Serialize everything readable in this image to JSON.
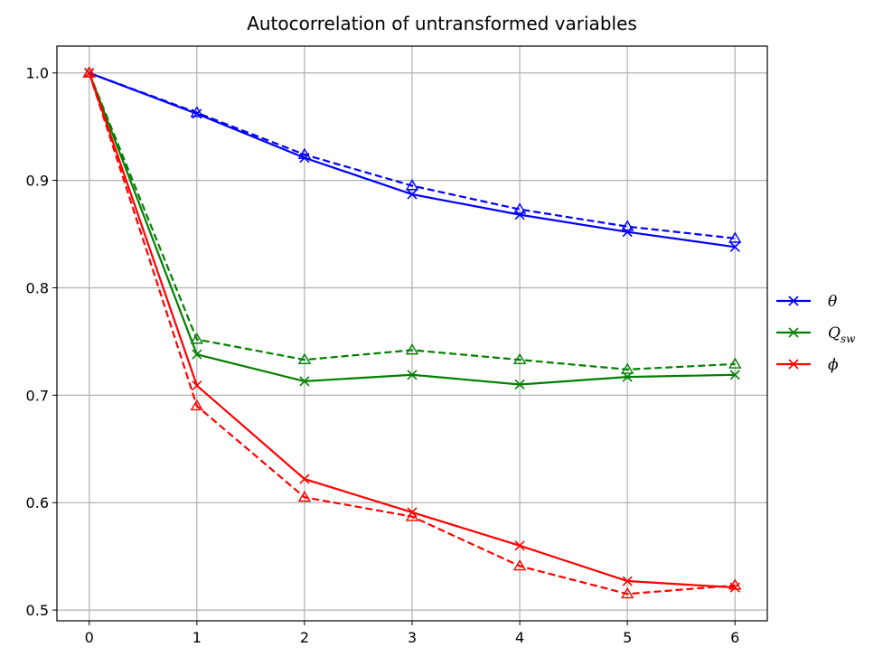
{
  "chart_data": {
    "type": "line",
    "title": "Autocorrelation of untransformed variables",
    "xlabel": "",
    "ylabel": "",
    "x": [
      0,
      1,
      2,
      3,
      4,
      5,
      6
    ],
    "xticks": [
      "0",
      "1",
      "2",
      "3",
      "4",
      "5",
      "6"
    ],
    "yticks": [
      "0.5",
      "0.6",
      "0.7",
      "0.8",
      "0.9",
      "1.0"
    ],
    "xlim": [
      -0.3,
      6.3
    ],
    "ylim": [
      0.49,
      1.025
    ],
    "grid": true,
    "legend_position": "center-right, outside plot",
    "series": [
      {
        "name": "θ",
        "color": "#0000ff",
        "linestyle": "solid",
        "marker": "x",
        "values": [
          1.0,
          0.962,
          0.921,
          0.887,
          0.868,
          0.852,
          0.838
        ]
      },
      {
        "name": "",
        "color": "#0000ff",
        "linestyle": "dashed",
        "marker": "triangle",
        "values": [
          1.0,
          0.963,
          0.924,
          0.895,
          0.873,
          0.857,
          0.846
        ]
      },
      {
        "name": "Q_sw",
        "color": "#008000",
        "linestyle": "solid",
        "marker": "x",
        "values": [
          1.0,
          0.738,
          0.713,
          0.719,
          0.71,
          0.717,
          0.719
        ]
      },
      {
        "name": "",
        "color": "#008000",
        "linestyle": "dashed",
        "marker": "triangle",
        "values": [
          1.0,
          0.752,
          0.733,
          0.742,
          0.733,
          0.724,
          0.729
        ]
      },
      {
        "name": "ϕ",
        "color": "#ff0000",
        "linestyle": "solid",
        "marker": "x",
        "values": [
          1.0,
          0.709,
          0.622,
          0.591,
          0.56,
          0.527,
          0.521
        ]
      },
      {
        "name": "",
        "color": "#ff0000",
        "linestyle": "dashed",
        "marker": "triangle",
        "values": [
          1.0,
          0.69,
          0.605,
          0.587,
          0.541,
          0.515,
          0.523
        ]
      }
    ],
    "legend": [
      {
        "label": "θ",
        "color": "#0000ff"
      },
      {
        "label": "Q",
        "sub": "sw",
        "color": "#008000"
      },
      {
        "label": "ϕ",
        "color": "#ff0000"
      }
    ]
  }
}
